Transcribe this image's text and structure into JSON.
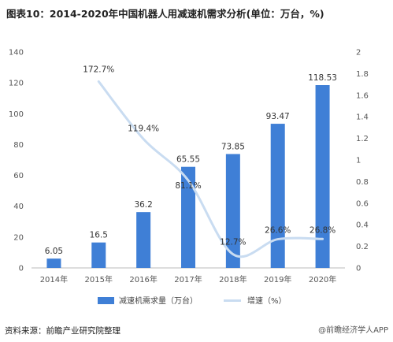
{
  "title": "图表10：2014-2020年中国机器人用减速机需求分析(单位：万台，%)",
  "source": "资料来源：前瞻产业研究院整理",
  "corner_text": "@前瞻经济学人APP",
  "colors": {
    "bar": "#3f7fd6",
    "line": "#c9dcf1"
  },
  "chart_data": {
    "type": "bar",
    "categories": [
      "2014年",
      "2015年",
      "2016年",
      "2017年",
      "2018年",
      "2019年",
      "2020年"
    ],
    "series": [
      {
        "name": "减速机需求量（万台）",
        "type": "bar",
        "axis": "left",
        "values": [
          6.05,
          16.5,
          36.2,
          65.55,
          73.85,
          93.47,
          118.53
        ],
        "labels": [
          "6.05",
          "16.5",
          "36.2",
          "65.55",
          "73.85",
          "93.47",
          "118.53"
        ]
      },
      {
        "name": "增速（%）",
        "type": "line",
        "axis": "right",
        "values": [
          null,
          1.727,
          1.194,
          0.811,
          0.127,
          0.266,
          0.268
        ],
        "labels": [
          "",
          "172.7%",
          "119.4%",
          "81.1%",
          "12.7%",
          "26.6%",
          "26.8%"
        ]
      }
    ],
    "y_left": {
      "min": 0,
      "max": 140,
      "ticks": [
        "0",
        "20",
        "40",
        "60",
        "80",
        "100",
        "120",
        "140"
      ]
    },
    "y_right": {
      "min": 0,
      "max": 2,
      "ticks": [
        "0",
        "0.2",
        "0.4",
        "0.6",
        "0.8",
        "1",
        "1.2",
        "1.4",
        "1.6",
        "1.8",
        "2"
      ]
    },
    "grid": false,
    "legend_position": "bottom"
  }
}
